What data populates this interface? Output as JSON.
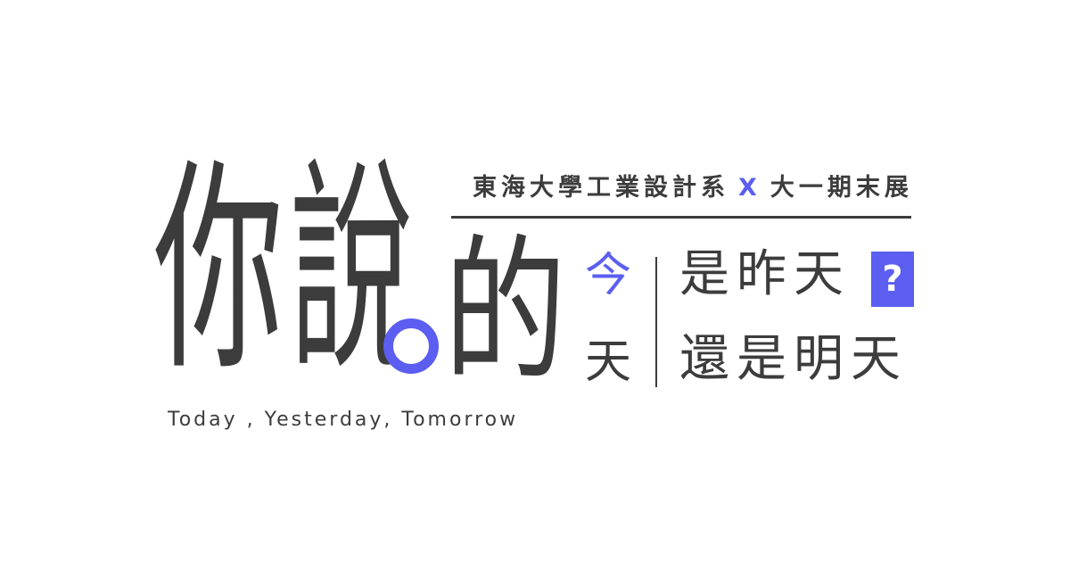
{
  "title": {
    "char_ni": "你",
    "char_shuo": "說",
    "char_de": "的"
  },
  "subtitle": {
    "left": "東海大學工業設計系",
    "separator": "X",
    "right": "大一期末展"
  },
  "side": {
    "jin": "今",
    "tian": "天"
  },
  "phrase": {
    "line1": "是昨天",
    "line2": "還是明天",
    "question": "?"
  },
  "english": "Today , Yesterday, Tomorrow",
  "colors": {
    "accent": "#5b5ef0",
    "text": "#3c3c3c",
    "background": "#ffffff"
  }
}
